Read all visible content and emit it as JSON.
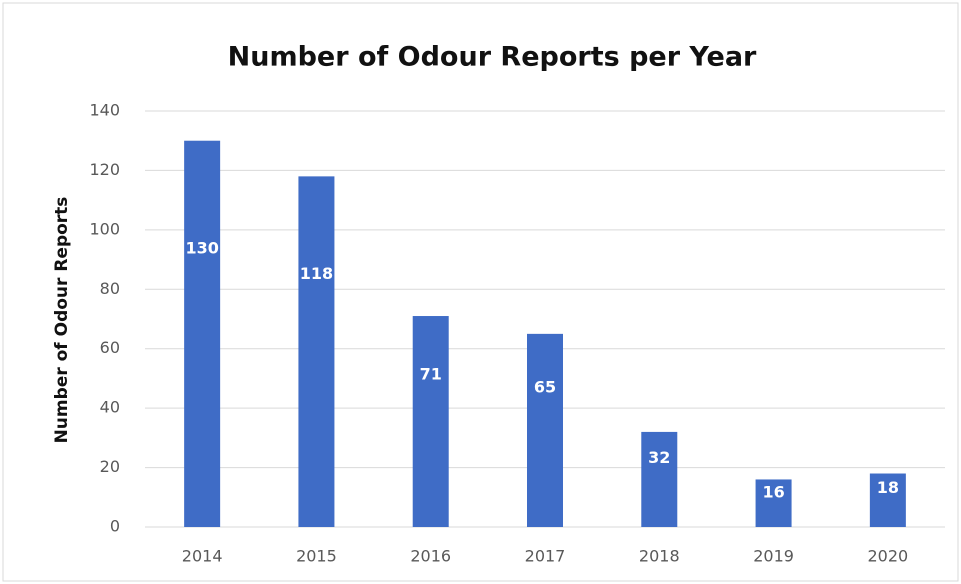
{
  "chart_data": {
    "type": "bar",
    "title": "Number of Odour Reports per Year",
    "y_label": "Number of Odour Reports",
    "categories": [
      "2014",
      "2015",
      "2016",
      "2017",
      "2018",
      "2019",
      "2020"
    ],
    "values": [
      130,
      118,
      71,
      65,
      32,
      16,
      18
    ],
    "color": "#3f6cc6",
    "ylim": [
      0,
      140
    ],
    "yticks": [
      0,
      20,
      40,
      60,
      80,
      100,
      120,
      140
    ],
    "grid": true
  }
}
